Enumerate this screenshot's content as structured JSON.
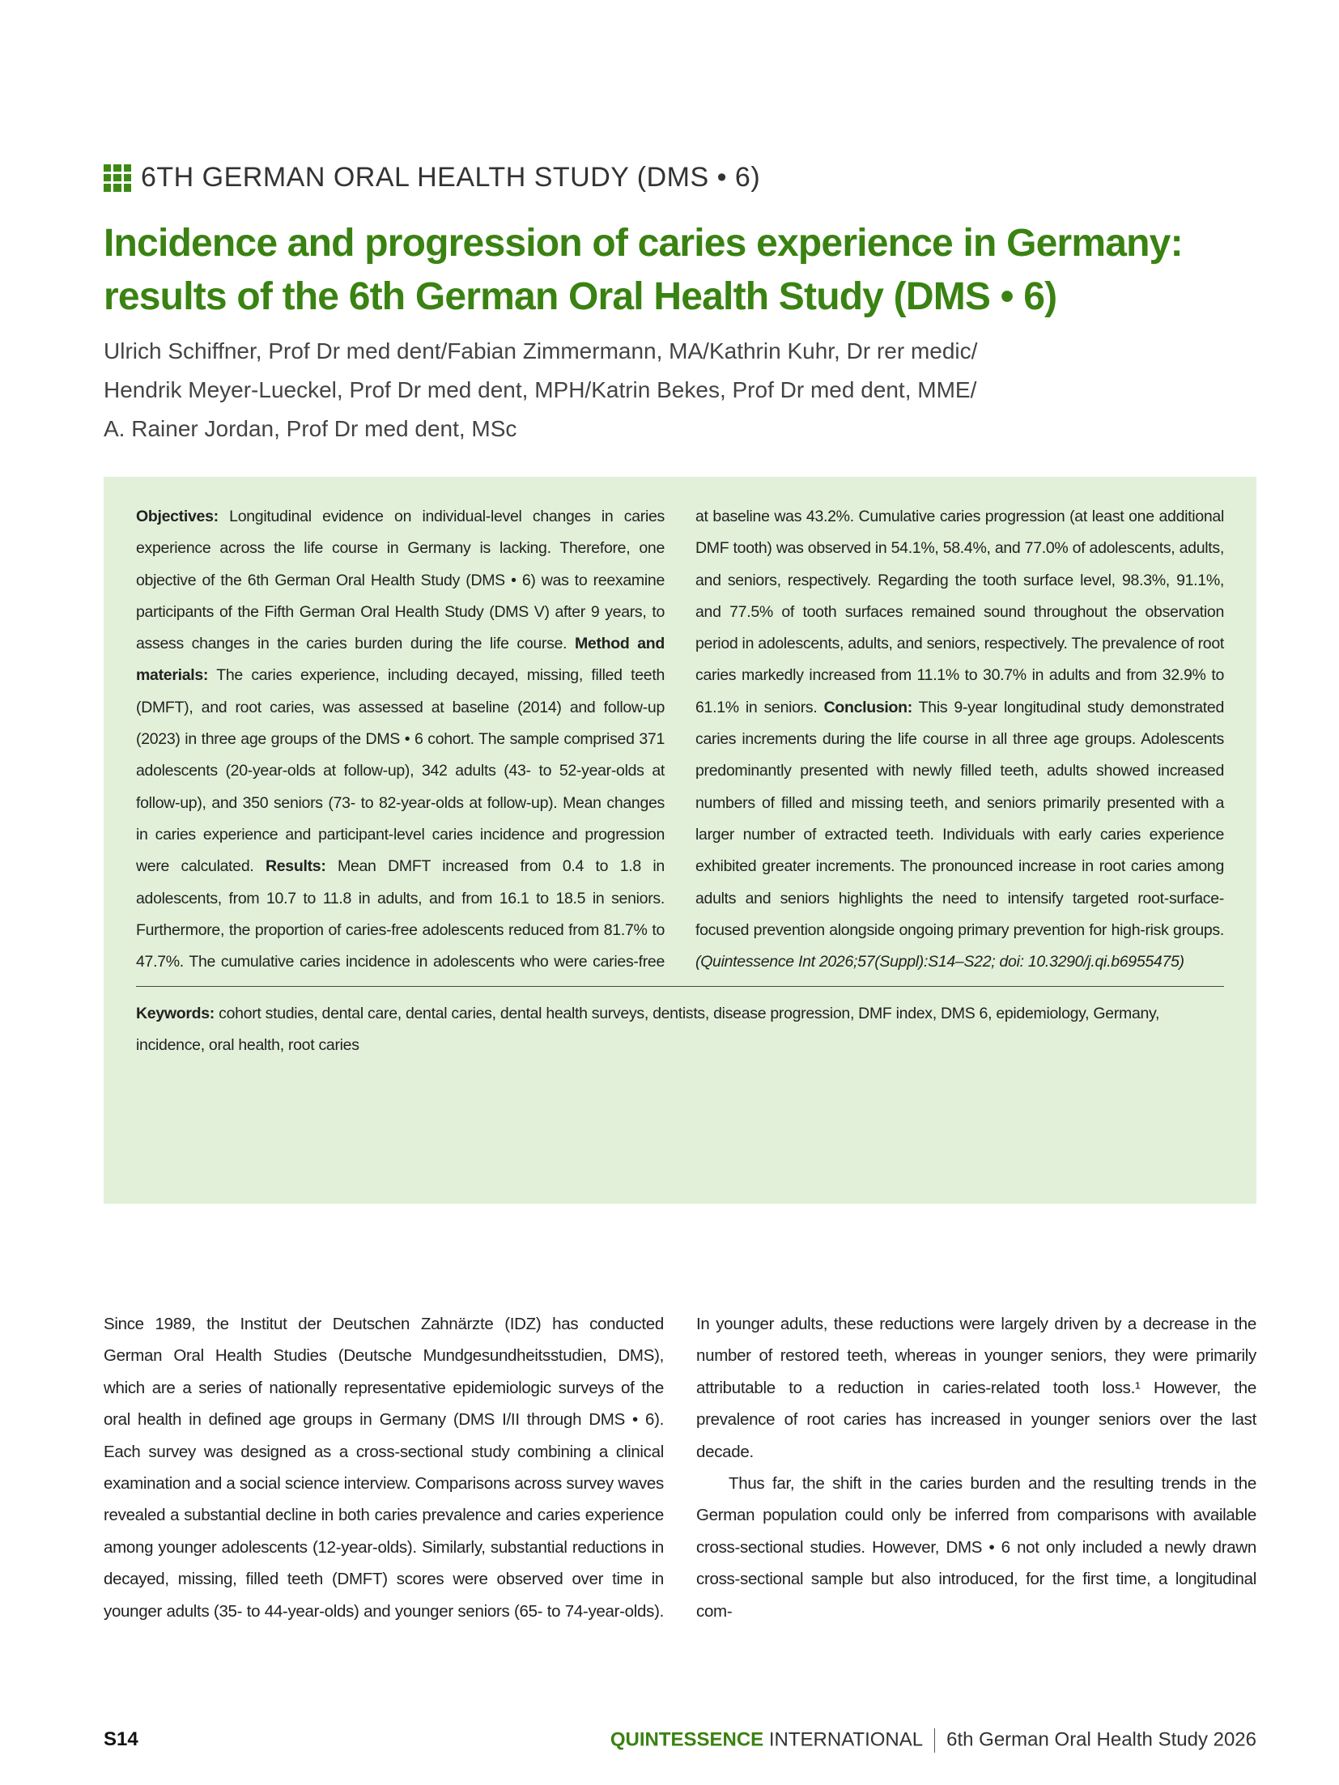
{
  "header": {
    "kicker": "6TH GERMAN ORAL HEALTH STUDY (DMS • 6)",
    "accent_color": "#3a8212",
    "icon": "grid-icon"
  },
  "article": {
    "title": "Incidence and progression of caries experience in Germany: results of the 6th German Oral Health Study (DMS • 6)",
    "authors": [
      "Ulrich Schiffner, Prof Dr med dent/Fabian Zimmermann, MA/Kathrin Kuhr, Dr rer medic/",
      "Hendrik Meyer-Lueckel, Prof Dr med dent, MPH/Katrin Bekes, Prof Dr med dent, MME/",
      "A. Rainer Jordan, Prof Dr med dent, MSc"
    ]
  },
  "abstract": {
    "background_color": "#e3f0d9",
    "sections": [
      {
        "label": "Objectives:",
        "text": " Longitudinal evidence on individual-level changes in caries experience across the life course in Germany is lacking. Therefore, one objective of the 6th German Oral Health Study (DMS • 6) was to reexamine participants of the Fifth German Oral Health Study (DMS V) after 9 years, to assess changes in the caries burden during the life course. "
      },
      {
        "label": "Method and materials:",
        "text": " The caries experience, including decayed, missing, filled teeth (DMFT), and root caries, was assessed at baseline (2014) and follow-up (2023) in three age groups of the DMS • 6 cohort. The sample comprised 371 adolescents (20-year-olds at follow-up), 342 adults (43- to 52-year-olds at follow-up), and 350 seniors (73- to 82-year-olds at follow-up). Mean changes in caries experience and participant-level caries incidence and progression were calculated. "
      },
      {
        "label": "Results:",
        "text": " Mean DMFT increased from 0.4 to 1.8 in adolescents, from 10.7 to 11.8 in adults, and from 16.1 to 18.5 in seniors. Furthermore, the proportion of caries-free adolescents reduced from 81.7% to 47.7%. The cumulative caries incidence in adolescents who were caries-free at baseline was 43.2%. Cumulative caries progression (at least one additional DMF tooth) was observed in 54.1%, 58.4%, and 77.0% of adolescents, adults, and seniors, respectively. Regarding the tooth surface level, 98.3%, 91.1%, and 77.5% of tooth surfaces remained sound throughout the observation period in adolescents, adults, and seniors, respectively. The prevalence of root caries markedly increased from 11.1% to 30.7% in adults and from 32.9% to 61.1% in seniors. "
      },
      {
        "label": "Conclusion:",
        "text": " This 9-year longitudinal study demonstrated caries increments during the life course in all three age groups. Adolescents predominantly presented with newly filled teeth, adults showed increased numbers of filled and missing teeth, and seniors primarily presented with a larger number of extracted teeth. Individuals with early caries experience exhibited greater increments. The pronounced increase in root caries among adults and seniors highlights the need to intensify targeted root-surface-focused prevention alongside ongoing primary prevention for high-risk groups. "
      }
    ],
    "citation": "(Quintessence Int 2026;57(Suppl):S14–S22; doi: 10.3290/j.qi.b6955475)",
    "keywords_label": "Keywords:",
    "keywords": " cohort studies, dental care, dental caries, dental health surveys, dentists, disease progression, DMF index, DMS 6, epidemiology, Germany, incidence, oral health, root caries"
  },
  "body": {
    "paragraphs": [
      "Since 1989, the Institut der Deutschen Zahnärzte (IDZ) has conducted German Oral Health Studies (Deutsche Mundgesundheitsstudien, DMS), which are a series of nationally representative epidemiologic surveys of the oral health in defined age groups in Germany (DMS I/II through DMS • 6). Each survey was designed as a cross-sectional study combining a clinical examination and a social science interview. Comparisons across survey waves revealed a substantial decline in both caries prevalence and caries experience among younger adolescents (12-year-olds). Similarly, substantial reductions in decayed, missing, filled teeth (DMFT) scores were observed over time in younger adults (35- to 44-year-olds) and younger seniors (65- to 74-year-olds). In younger adults, these reductions were largely driven by a decrease in the number of restored teeth, whereas in younger seniors, they were primarily attributable to a reduction in caries-related tooth loss.¹ However, the prevalence of root caries has increased in younger seniors over the last decade.",
      "Thus far, the shift in the caries burden and the resulting trends in the German population could only be inferred from comparisons with available cross-sectional studies. However, DMS • 6 not only included a newly drawn cross-sectional sample but also introduced, for the first time, a longitudinal com-"
    ]
  },
  "footer": {
    "page": "S14",
    "journal_bold": "QUINTESSENCE",
    "journal_rest": " INTERNATIONAL",
    "issue": "6th German Oral Health Study 2026"
  }
}
